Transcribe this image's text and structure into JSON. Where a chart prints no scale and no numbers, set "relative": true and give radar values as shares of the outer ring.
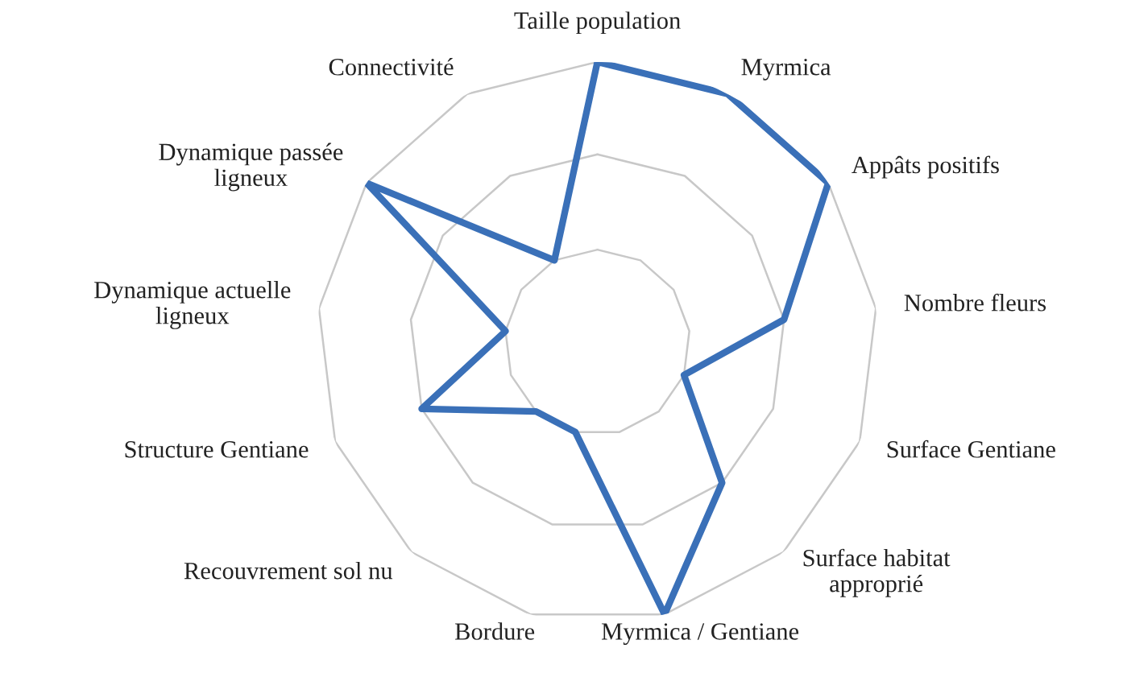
{
  "chart_data": {
    "type": "radar",
    "relative": true,
    "grid": true,
    "marker": "none",
    "line_style": "solid",
    "categories": [
      "Taille population",
      "Myrmica",
      "Appâts positifs",
      "Nombre fleurs",
      "Surface Gentiane",
      "Surface habitat\napproprié",
      "Myrmica / Gentiane",
      "Bordure",
      "Recouvrement sol nu",
      "Structure Gentiane",
      "Dynamique actuelle\nligneux",
      "Dynamique passée\nligneux",
      "Connectivité"
    ],
    "series": [
      {
        "color": "#3a70b8",
        "values": [
          1,
          1,
          1,
          0.67,
          0.33,
          0.67,
          1,
          0.33,
          0.33,
          0.67,
          0.33,
          1,
          0.33
        ]
      }
    ]
  }
}
